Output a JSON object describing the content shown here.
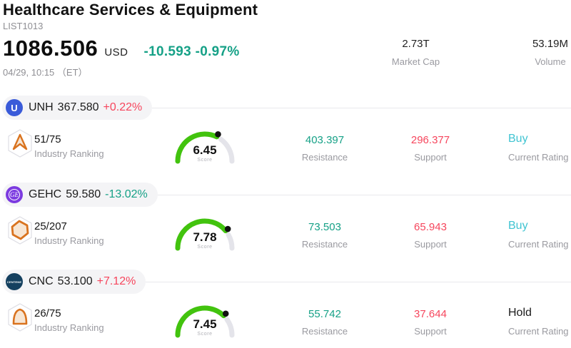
{
  "header": {
    "title": "Healthcare Services & Equipment",
    "list_id": "LIST1013",
    "price": "1086.506",
    "currency": "USD",
    "change": "-10.593 -0.97%",
    "datetime": "04/29, 10:15 （ET）",
    "stats": [
      {
        "value": "2.73T",
        "label": "Market Cap"
      },
      {
        "value": "53.19M",
        "label": "Volume"
      }
    ]
  },
  "labels": {
    "industry_ranking": "Industry Ranking",
    "score": "Score",
    "resistance": "Resistance",
    "support": "Support",
    "current_rating": "Current Rating"
  },
  "colors": {
    "down": "#16a187",
    "up": "#f6465d",
    "buy": "#40c4d2",
    "hold": "#1a1a1a",
    "gauge_green": "#42c30e",
    "gauge_track": "#e4e4ea",
    "muted": "#9a9aa0",
    "resistance": "#16a187",
    "support": "#f6465d"
  },
  "stocks": [
    {
      "ticker": "UNH",
      "price": "367.580",
      "change": "+0.22%",
      "change_color": "#f6465d",
      "logo_bg": "#3a5bd9",
      "logo_text": "U",
      "rank": "51/75",
      "score": 6.45,
      "score_text": "6.45",
      "resistance": "403.397",
      "support": "296.377",
      "rating": "Buy",
      "rating_color": "#40c4d2"
    },
    {
      "ticker": "GEHC",
      "price": "59.580",
      "change": "-13.02%",
      "change_color": "#16a187",
      "logo_bg": "#7c3be0",
      "logo_text": "GE",
      "rank": "25/207",
      "score": 7.78,
      "score_text": "7.78",
      "resistance": "73.503",
      "support": "65.943",
      "rating": "Buy",
      "rating_color": "#40c4d2"
    },
    {
      "ticker": "CNC",
      "price": "53.100",
      "change": "+7.12%",
      "change_color": "#f6465d",
      "logo_bg": "#14405f",
      "logo_text": "CENTENE",
      "rank": "26/75",
      "score": 7.45,
      "score_text": "7.45",
      "resistance": "55.742",
      "support": "37.644",
      "rating": "Hold",
      "rating_color": "#1a1a1a"
    }
  ]
}
